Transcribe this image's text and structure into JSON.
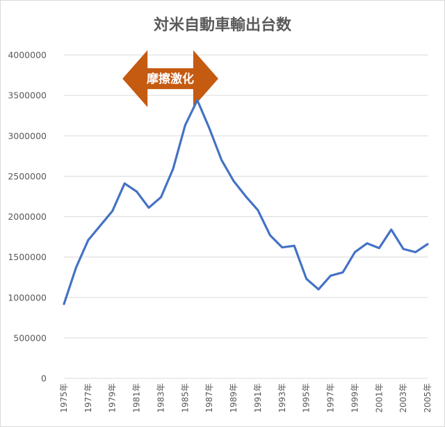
{
  "chart_data": {
    "type": "line",
    "title": "対米自動車輸出台数",
    "xlabel": "",
    "ylabel": "",
    "ylim": [
      0,
      4000000
    ],
    "yticks": [
      0,
      500000,
      1000000,
      1500000,
      2000000,
      2500000,
      3000000,
      3500000,
      4000000
    ],
    "ytick_labels": [
      "0",
      "500000",
      "1000000",
      "1500000",
      "2000000",
      "2500000",
      "3000000",
      "3500000",
      "4000000"
    ],
    "x_tick_labels": [
      "1975年",
      "1977年",
      "1979年",
      "1981年",
      "1983年",
      "1985年",
      "1987年",
      "1989年",
      "1991年",
      "1993年",
      "1995年",
      "1997年",
      "1999年",
      "2001年",
      "2003年",
      "2005年"
    ],
    "grid": true,
    "legend": "none",
    "series": [
      {
        "x": [
          1975,
          1976,
          1977,
          1978,
          1979,
          1980,
          1981,
          1982,
          1983,
          1984,
          1985,
          1986,
          1987,
          1988,
          1989,
          1990,
          1991,
          1992,
          1993,
          1994,
          1995,
          1996,
          1997,
          1998,
          1999,
          2000,
          2001,
          2002,
          2003,
          2004,
          2005
        ],
        "values": [
          920000,
          1370000,
          1710000,
          1890000,
          2070000,
          2410000,
          2310000,
          2110000,
          2240000,
          2590000,
          3130000,
          3440000,
          3090000,
          2700000,
          2440000,
          2250000,
          2080000,
          1770000,
          1620000,
          1640000,
          1230000,
          1100000,
          1270000,
          1310000,
          1560000,
          1670000,
          1610000,
          1840000,
          1600000,
          1560000,
          1660000
        ],
        "color": "#4472c4"
      }
    ],
    "annotation": {
      "text": "摩擦激化",
      "x_range": [
        1980,
        1987.5
      ],
      "y_value": 3750000,
      "color": "#c55a11",
      "shape": "double-arrow"
    }
  }
}
